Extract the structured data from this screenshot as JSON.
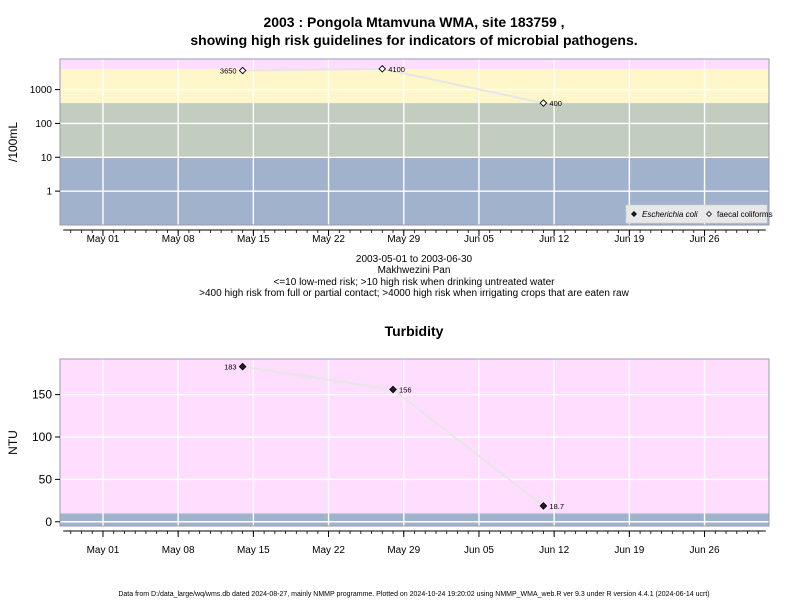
{
  "figure": {
    "title_line1": "2003 : Pongola Mtamvuna WMA, site 183759 ,",
    "title_line2": "showing high risk guidelines for indicators of microbial pathogens.",
    "subtitle_lines": [
      "2003-05-01 to 2003-06-30",
      "Makhwezini Pan",
      "<=10 low-med risk; >10 high risk when drinking untreated water",
      ">400 high risk from full or partial contact; >4000 high risk when irrigating crops that are eaten raw"
    ],
    "footer": "Data from D:/data_large/wq/wms.db dated 2024-08-27, mainly NMMP programme. Plotted on 2024-10-24 19:20:02 using NMMP_WMA_web.R ver 9.3 under R version 4.4.1 (2024-06-14 ucrt)"
  },
  "colors": {
    "pink": "#ffddff",
    "yellow": "#fff7c9",
    "sage": "#c3cdbf",
    "blue": "#a1b3cc",
    "line": "#e6e6e6",
    "grid": "#ffffff"
  },
  "chart_data": [
    {
      "type": "line",
      "title": "",
      "ylabel": "/100mL",
      "scale": "log",
      "xlim": [
        "2003-04-27",
        "2003-07-02"
      ],
      "ylim": [
        0.1,
        8000
      ],
      "x_ticks": [
        "May 01",
        "May 08",
        "May 15",
        "May 22",
        "May 29",
        "Jun 05",
        "Jun 12",
        "Jun 19",
        "Jun 26"
      ],
      "x_tick_dates": [
        "2003-05-01",
        "2003-05-08",
        "2003-05-15",
        "2003-05-22",
        "2003-05-29",
        "2003-06-05",
        "2003-06-12",
        "2003-06-19",
        "2003-06-26"
      ],
      "y_ticks": [
        "1",
        "10",
        "100",
        "1000"
      ],
      "y_tick_values": [
        1,
        10,
        100,
        1000
      ],
      "risk_bands": [
        {
          "from": 0.1,
          "to": 10,
          "color": "#a1b3cc"
        },
        {
          "from": 10,
          "to": 400,
          "color": "#c3cdbf"
        },
        {
          "from": 400,
          "to": 4000,
          "color": "#fff7c9"
        },
        {
          "from": 4000,
          "to": 8000,
          "color": "#ffddff"
        }
      ],
      "series": [
        {
          "name": "faecal coliforms",
          "marker": "open-diamond",
          "points": [
            {
              "x": "2003-05-14",
              "y": 3650,
              "label": "3650"
            },
            {
              "x": "2003-05-27",
              "y": 4100,
              "label": "4100"
            },
            {
              "x": "2003-06-11",
              "y": 400,
              "label": "400"
            }
          ]
        }
      ],
      "legend": {
        "position": "bottom-right",
        "entries": [
          {
            "label": "Escherichia coli",
            "marker": "filled-diamond"
          },
          {
            "label": "faecal coliforms",
            "marker": "open-diamond"
          }
        ]
      },
      "grid": true
    },
    {
      "type": "line",
      "title": "Turbidity",
      "ylabel": "NTU",
      "scale": "linear",
      "xlim": [
        "2003-04-27",
        "2003-07-02"
      ],
      "ylim": [
        -5,
        192
      ],
      "x_ticks": [
        "May 01",
        "May 08",
        "May 15",
        "May 22",
        "May 29",
        "Jun 05",
        "Jun 12",
        "Jun 19",
        "Jun 26"
      ],
      "x_tick_dates": [
        "2003-05-01",
        "2003-05-08",
        "2003-05-15",
        "2003-05-22",
        "2003-05-29",
        "2003-06-05",
        "2003-06-12",
        "2003-06-19",
        "2003-06-26"
      ],
      "y_ticks": [
        "0",
        "50",
        "100",
        "150"
      ],
      "y_tick_values": [
        0,
        50,
        100,
        150
      ],
      "risk_bands": [
        {
          "from": -5,
          "to": 10,
          "color": "#a1b3cc"
        },
        {
          "from": 10,
          "to": 192,
          "color": "#ffddff"
        }
      ],
      "series": [
        {
          "name": "",
          "marker": "filled-diamond",
          "points": [
            {
              "x": "2003-05-14",
              "y": 183,
              "label": "183"
            },
            {
              "x": "2003-05-28",
              "y": 156,
              "label": "156"
            },
            {
              "x": "2003-06-11",
              "y": 18.7,
              "label": "18.7"
            }
          ]
        }
      ],
      "grid": true
    }
  ]
}
